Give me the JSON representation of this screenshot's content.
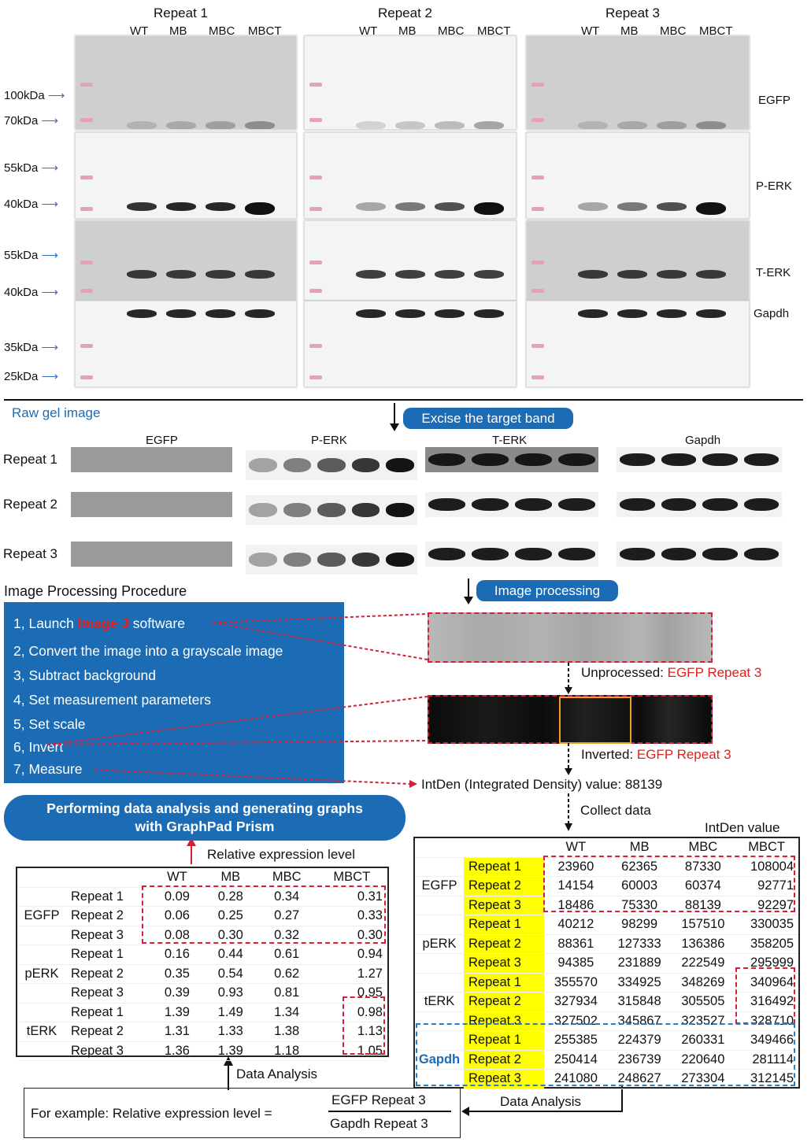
{
  "gel": {
    "repeats": [
      "Repeat 1",
      "Repeat 2",
      "Repeat 3"
    ],
    "lanes": [
      "WT",
      "MB",
      "MBC",
      "MBCT"
    ],
    "markers": [
      "100kDa",
      "70kDa",
      "55kDa",
      "40kDa",
      "55kDa",
      "40kDa",
      "35kDa",
      "25kDa"
    ],
    "targets": [
      "EGFP",
      "P-ERK",
      "T-ERK",
      "Gapdh"
    ],
    "raw_label": "Raw gel image",
    "excise_label": "Excise the target band"
  },
  "excised": {
    "columns": [
      "EGFP",
      "P-ERK",
      "T-ERK",
      "Gapdh"
    ],
    "rows": [
      "Repeat 1",
      "Repeat 2",
      "Repeat 3"
    ]
  },
  "procedure": {
    "title": "Image Processing Procedure",
    "steps": [
      {
        "prefix": "1, Launch ",
        "highlight": "Image J",
        "suffix": " software"
      },
      {
        "text": "2, Convert the image into a grayscale image"
      },
      {
        "text": "3, Subtract background"
      },
      {
        "text": "4, Set measurement parameters"
      },
      {
        "text": "5, Set scale"
      },
      {
        "text": "6, Invert"
      },
      {
        "text": "7, Measure"
      }
    ],
    "processing_label": "Image processing",
    "unprocessed_prefix": "Unprocessed: ",
    "unprocessed_target": "EGFP Repeat 3",
    "inverted_prefix": "Inverted: ",
    "inverted_target": "EGFP Repeat 3",
    "intden_text": "IntDen (Integrated Density) value: 88139",
    "collect_label": "Collect data",
    "highlight_color": "#e0201b",
    "accent_color": "#1b6cb4"
  },
  "prism_label_1": "Performing data analysis and generating graphs",
  "prism_label_2": "with GraphPad Prism",
  "intden_table": {
    "title": "IntDen value",
    "columns": [
      "WT",
      "MB",
      "MBC",
      "MBCT"
    ],
    "groups": [
      {
        "name": "EGFP",
        "rows": [
          [
            "Repeat 1",
            "23960",
            "62365",
            "87330",
            "108004"
          ],
          [
            "Repeat 2",
            "14154",
            "60003",
            "60374",
            "92771"
          ],
          [
            "Repeat 3",
            "18486",
            "75330",
            "88139",
            "92297"
          ]
        ]
      },
      {
        "name": "pERK",
        "rows": [
          [
            "Repeat 1",
            "40212",
            "98299",
            "157510",
            "330035"
          ],
          [
            "Repeat 2",
            "88361",
            "127333",
            "136386",
            "358205"
          ],
          [
            "Repeat 3",
            "94385",
            "231889",
            "222549",
            "295999"
          ]
        ]
      },
      {
        "name": "tERK",
        "rows": [
          [
            "Repeat 1",
            "355570",
            "334925",
            "348269",
            "340964"
          ],
          [
            "Repeat 2",
            "327934",
            "315848",
            "305505",
            "316492"
          ],
          [
            "Repeat 3",
            "327502",
            "345867",
            "323527",
            "328710"
          ]
        ]
      },
      {
        "name": "Gapdh",
        "rows": [
          [
            "Repeat 1",
            "255385",
            "224379",
            "260331",
            "349466"
          ],
          [
            "Repeat 2",
            "250414",
            "236739",
            "220640",
            "281114"
          ],
          [
            "Repeat 3",
            "241080",
            "248627",
            "273304",
            "312145"
          ]
        ]
      }
    ]
  },
  "relative_table": {
    "title": "Relative expression level",
    "columns": [
      "WT",
      "MB",
      "MBC",
      "MBCT"
    ],
    "groups": [
      {
        "name": "EGFP",
        "rows": [
          [
            "Repeat 1",
            "0.09",
            "0.28",
            "0.34",
            "0.31"
          ],
          [
            "Repeat 2",
            "0.06",
            "0.25",
            "0.27",
            "0.33"
          ],
          [
            "Repeat 3",
            "0.08",
            "0.30",
            "0.32",
            "0.30"
          ]
        ]
      },
      {
        "name": "pERK",
        "rows": [
          [
            "Repeat 1",
            "0.16",
            "0.44",
            "0.61",
            "0.94"
          ],
          [
            "Repeat 2",
            "0.35",
            "0.54",
            "0.62",
            "1.27"
          ],
          [
            "Repeat 3",
            "0.39",
            "0.93",
            "0.81",
            "0.95"
          ]
        ]
      },
      {
        "name": "tERK",
        "rows": [
          [
            "Repeat 1",
            "1.39",
            "1.49",
            "1.34",
            "0.98"
          ],
          [
            "Repeat 2",
            "1.31",
            "1.33",
            "1.38",
            "1.13"
          ],
          [
            "Repeat 3",
            "1.36",
            "1.39",
            "1.18",
            "1.05"
          ]
        ]
      }
    ]
  },
  "data_analysis_label": "Data Analysis",
  "formula": {
    "prefix": "For example: Relative expression level =",
    "numerator": "EGFP Repeat 3",
    "denominator": "Gapdh Repeat 3"
  }
}
